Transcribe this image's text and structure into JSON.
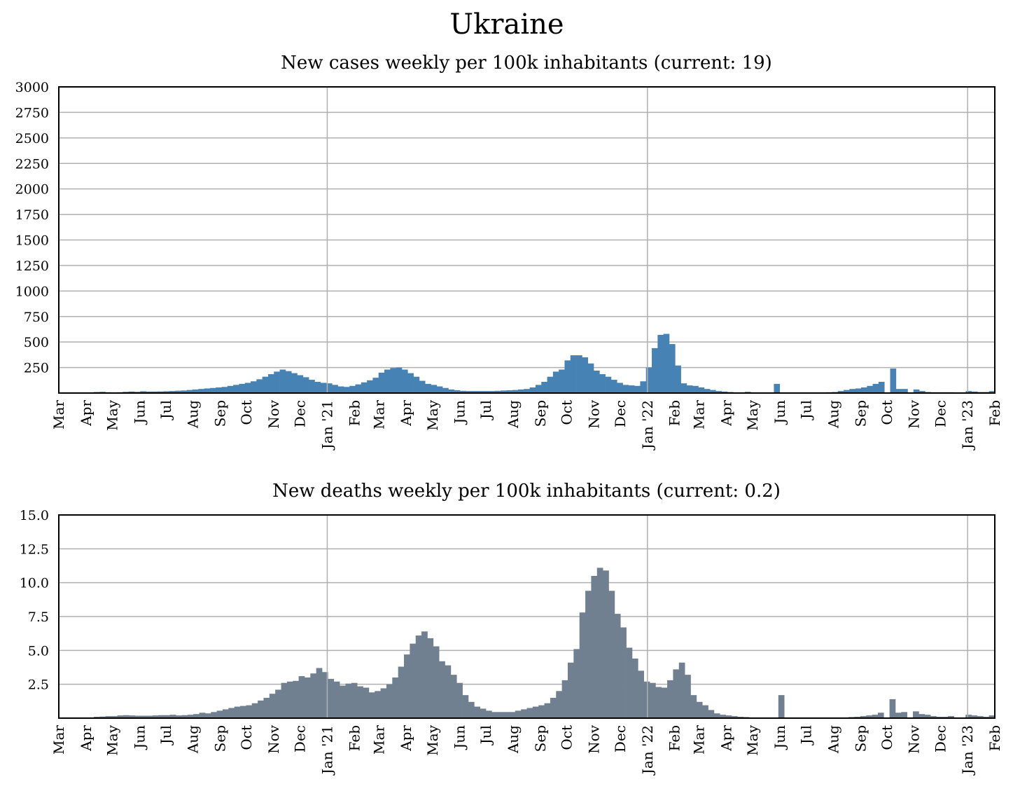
{
  "title": "Ukraine",
  "months_axis": [
    "Mar",
    "Apr",
    "May",
    "Jun",
    "Jul",
    "Aug",
    "Sep",
    "Oct",
    "Nov",
    "Dec",
    "Jan '21",
    "Feb",
    "Mar",
    "Apr",
    "May",
    "Jun",
    "Jul",
    "Aug",
    "Sep",
    "Oct",
    "Nov",
    "Dec",
    "Jan '22",
    "Feb",
    "Mar",
    "Apr",
    "May",
    "Jun",
    "Jul",
    "Aug",
    "Sep",
    "Oct",
    "Nov",
    "Dec",
    "Jan '23",
    "Feb"
  ],
  "colors": {
    "cases": "#4682b4",
    "deaths": "#708090",
    "grid": "#b0b0b0",
    "year_line": "#b0b0b0"
  },
  "chart_data": [
    {
      "type": "bar",
      "title": "New cases weekly per 100k inhabitants (current: 19)",
      "x": {
        "start": "2020-03",
        "end": "2023-02",
        "unit": "week"
      },
      "ylim": [
        0,
        3000
      ],
      "yticks": [
        250,
        500,
        750,
        1000,
        1250,
        1500,
        1750,
        2000,
        2250,
        2500,
        2750,
        3000
      ],
      "grid": true,
      "values": [
        0,
        1,
        2,
        3,
        3,
        5,
        10,
        12,
        8,
        5,
        8,
        12,
        15,
        12,
        18,
        15,
        15,
        16,
        18,
        20,
        23,
        25,
        30,
        35,
        40,
        45,
        50,
        55,
        60,
        70,
        80,
        90,
        100,
        115,
        135,
        160,
        185,
        210,
        230,
        215,
        195,
        175,
        155,
        130,
        110,
        100,
        95,
        80,
        65,
        60,
        70,
        85,
        105,
        125,
        150,
        200,
        230,
        245,
        250,
        230,
        195,
        160,
        120,
        90,
        80,
        65,
        50,
        35,
        28,
        22,
        20,
        20,
        20,
        20,
        20,
        22,
        25,
        27,
        30,
        35,
        40,
        55,
        80,
        110,
        160,
        210,
        230,
        320,
        370,
        370,
        350,
        290,
        220,
        185,
        160,
        130,
        100,
        80,
        75,
        70,
        115,
        250,
        440,
        570,
        580,
        480,
        270,
        95,
        75,
        70,
        55,
        40,
        30,
        20,
        15,
        10,
        6,
        5,
        12,
        4,
        3,
        3,
        3,
        90,
        3,
        3,
        3,
        3,
        3,
        3,
        3,
        3,
        8,
        10,
        20,
        30,
        40,
        45,
        55,
        70,
        90,
        110,
        2,
        240,
        40,
        40,
        3,
        35,
        20,
        10,
        8,
        8,
        8,
        8,
        3,
        5,
        20,
        15,
        10,
        10,
        19
      ]
    },
    {
      "type": "bar",
      "title": "New deaths weekly per 100k inhabitants (current: 0.2)",
      "x": {
        "start": "2020-03",
        "end": "2023-02",
        "unit": "week"
      },
      "ylim": [
        0,
        15
      ],
      "yticks": [
        2.5,
        5.0,
        7.5,
        10.0,
        12.5,
        15.0
      ],
      "grid": true,
      "values": [
        0,
        0,
        0,
        0,
        0.02,
        0.05,
        0.1,
        0.12,
        0.15,
        0.15,
        0.2,
        0.22,
        0.2,
        0.18,
        0.18,
        0.18,
        0.2,
        0.22,
        0.22,
        0.25,
        0.2,
        0.22,
        0.25,
        0.3,
        0.4,
        0.35,
        0.45,
        0.55,
        0.65,
        0.75,
        0.85,
        0.9,
        0.95,
        1.1,
        1.3,
        1.5,
        1.8,
        2.1,
        2.6,
        2.7,
        2.75,
        3.1,
        3.0,
        3.3,
        3.7,
        3.4,
        2.9,
        2.7,
        2.4,
        2.55,
        2.6,
        2.35,
        2.25,
        1.9,
        2.0,
        2.2,
        2.5,
        3.0,
        3.8,
        4.7,
        5.5,
        6.1,
        6.4,
        5.9,
        5.3,
        4.2,
        3.9,
        3.2,
        2.6,
        1.7,
        1.2,
        0.85,
        0.7,
        0.55,
        0.45,
        0.45,
        0.45,
        0.45,
        0.55,
        0.65,
        0.75,
        0.85,
        0.95,
        1.1,
        1.5,
        2.0,
        2.8,
        4.1,
        5.1,
        7.8,
        9.4,
        10.5,
        11.1,
        10.9,
        9.4,
        7.7,
        6.7,
        5.2,
        4.4,
        3.5,
        2.7,
        2.6,
        2.3,
        2.25,
        2.8,
        3.6,
        4.1,
        3.2,
        1.7,
        1.2,
        0.95,
        0.6,
        0.35,
        0.25,
        0.2,
        0.15,
        0.1,
        0.08,
        0.05,
        0.05,
        0.03,
        0.02,
        0.02,
        1.7,
        0.02,
        0.02,
        0.02,
        0.02,
        0.02,
        0.02,
        0.02,
        0.02,
        0.03,
        0.03,
        0.05,
        0.08,
        0.1,
        0.15,
        0.2,
        0.25,
        0.4,
        0.02,
        1.4,
        0.4,
        0.45,
        0.02,
        0.5,
        0.3,
        0.25,
        0.15,
        0.1,
        0.1,
        0.15,
        0.02,
        0.02,
        0.25,
        0.2,
        0.15,
        0.1,
        0.2
      ]
    }
  ]
}
